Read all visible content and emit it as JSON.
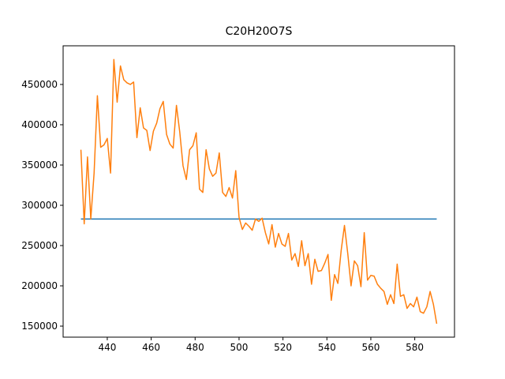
{
  "chart_data": {
    "type": "line",
    "title": "C20H20O7S",
    "series": [
      {
        "color": "#1f77b4",
        "x": [
          428,
          590
        ],
        "values": [
          283000,
          283000
        ]
      },
      {
        "color": "#ff7f0e",
        "x": [
          428,
          429.5,
          431,
          432.5,
          434,
          435.5,
          437,
          438.5,
          440,
          441.5,
          443,
          444.5,
          446,
          447.5,
          449,
          450.5,
          452,
          453.5,
          455,
          456.5,
          458,
          459.5,
          461,
          462.5,
          464,
          465.5,
          467,
          468.5,
          470,
          471.5,
          473,
          474.5,
          476,
          477.5,
          479,
          480.5,
          482,
          483.5,
          485,
          486.5,
          488,
          489.5,
          491,
          492.5,
          494,
          495.5,
          497,
          498.5,
          500,
          501.5,
          503,
          504.5,
          506,
          507.5,
          509,
          510.5,
          512,
          513.5,
          515,
          516.5,
          518,
          519.5,
          521,
          522.5,
          524,
          525.5,
          527,
          528.5,
          530,
          531.5,
          533,
          534.5,
          536,
          537.5,
          539,
          540.5,
          542,
          543.5,
          545,
          546.5,
          548,
          549.5,
          551,
          552.5,
          554,
          555.5,
          557,
          558.5,
          560,
          561.5,
          563,
          564.5,
          566,
          567.5,
          569,
          570.5,
          572,
          573.5,
          575,
          576.5,
          578,
          579.5,
          581,
          582.5,
          584,
          585.5,
          587,
          588.5,
          590
        ],
        "values": [
          369000,
          277000,
          360000,
          283000,
          340000,
          436000,
          372000,
          375000,
          383000,
          340000,
          481000,
          428000,
          473000,
          456000,
          452000,
          450000,
          453000,
          384000,
          421000,
          396000,
          393000,
          368000,
          392000,
          402000,
          420000,
          429000,
          388000,
          376000,
          371000,
          424000,
          391000,
          349000,
          332000,
          369000,
          374000,
          390000,
          320000,
          316000,
          369000,
          345000,
          336000,
          340000,
          365000,
          316000,
          311000,
          322000,
          309000,
          343000,
          285000,
          270000,
          278000,
          274000,
          269000,
          283000,
          280000,
          284000,
          266000,
          252000,
          276000,
          248000,
          265000,
          252000,
          249000,
          265000,
          232000,
          240000,
          224000,
          256000,
          225000,
          240000,
          202000,
          233000,
          218000,
          219000,
          228000,
          239000,
          182000,
          214000,
          203000,
          244000,
          275000,
          240000,
          200000,
          231000,
          225000,
          199000,
          266000,
          207000,
          213000,
          212000,
          202000,
          197000,
          193000,
          177000,
          189000,
          178000,
          227000,
          187000,
          189000,
          172000,
          178000,
          174000,
          186000,
          168000,
          166000,
          174000,
          193000,
          177000,
          153000
        ]
      }
    ],
    "xlim": [
      419.9,
      598.1
    ],
    "ylim": [
      136300,
      498000
    ],
    "xticks": [
      440,
      460,
      480,
      500,
      520,
      540,
      560,
      580
    ],
    "yticks": [
      150000,
      200000,
      250000,
      300000,
      350000,
      400000,
      450000
    ],
    "grid": false
  }
}
